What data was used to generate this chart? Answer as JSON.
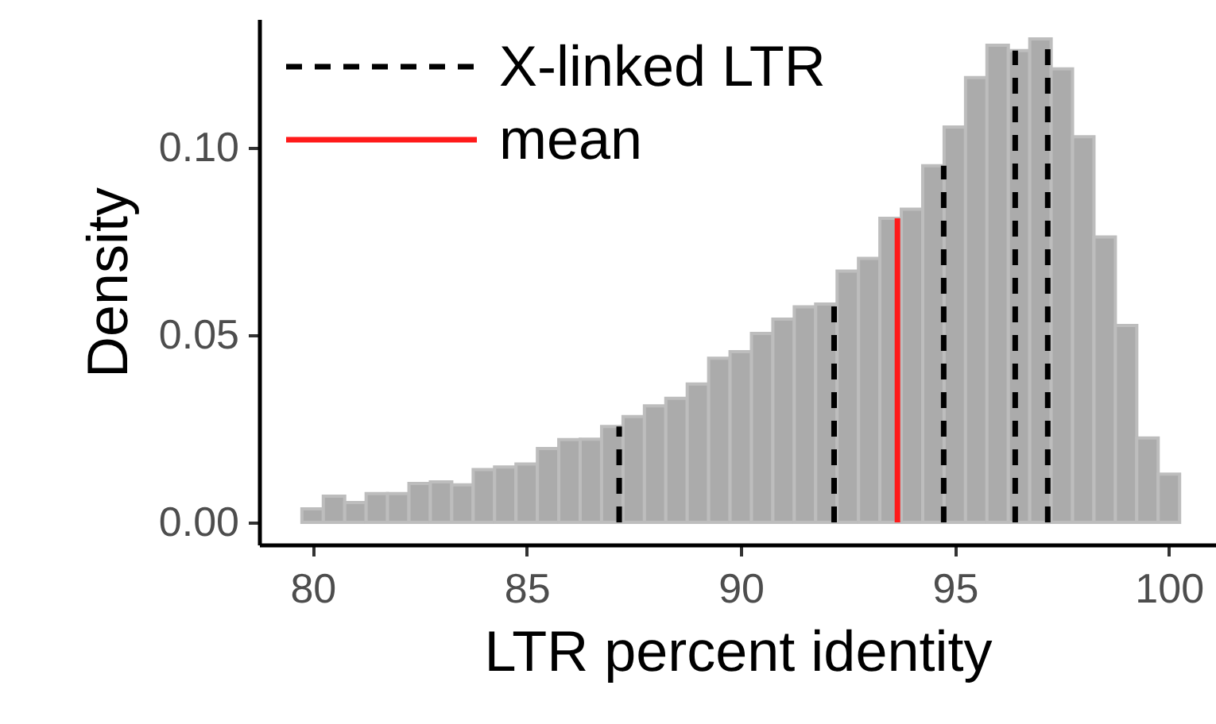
{
  "chart_data": {
    "type": "histogram",
    "xlabel": "LTR percent identity",
    "ylabel": "Density",
    "bins": [
      79.75,
      80.25,
      80.75,
      81.25,
      81.75,
      82.25,
      82.75,
      83.25,
      83.75,
      84.25,
      84.75,
      85.25,
      85.75,
      86.25,
      86.75,
      87.25,
      87.75,
      88.25,
      88.75,
      89.25,
      89.75,
      90.25,
      90.75,
      91.25,
      91.75,
      92.25,
      92.75,
      93.25,
      93.75,
      94.25,
      94.75,
      95.25,
      95.75,
      96.25,
      96.75,
      97.25,
      97.75,
      98.25,
      98.75,
      99.25,
      99.75,
      100.25
    ],
    "values": [
      0.0036,
      0.007,
      0.0053,
      0.0077,
      0.0077,
      0.0104,
      0.0108,
      0.01,
      0.0141,
      0.0148,
      0.0156,
      0.0197,
      0.0221,
      0.0222,
      0.0256,
      0.0282,
      0.0311,
      0.0331,
      0.0369,
      0.0438,
      0.0455,
      0.0504,
      0.0542,
      0.0575,
      0.0582,
      0.067,
      0.0704,
      0.0811,
      0.0835,
      0.0951,
      0.1054,
      0.1186,
      0.1272,
      0.1258,
      0.1289,
      0.1209,
      0.1028,
      0.0761,
      0.0525,
      0.0225,
      0.0129
    ],
    "color": "#ababab",
    "xlim": [
      78.75,
      101.1
    ],
    "ylim": [
      -0.0059,
      0.1342
    ],
    "xticks": [
      80,
      85,
      90,
      95,
      100
    ],
    "yticks": [
      {
        "value": 0,
        "label": "0.00"
      },
      {
        "value": 0.05,
        "label": "0.05"
      },
      {
        "value": 0.1,
        "label": "0.10"
      }
    ],
    "ref_lines": [
      {
        "axis": "x",
        "value": 87.16,
        "label": "X-linked LTR",
        "color": "#000000",
        "line_style": "dashed"
      },
      {
        "axis": "x",
        "value": 92.18,
        "color": "#000000",
        "line_style": "dashed"
      },
      {
        "axis": "x",
        "value": 93.66,
        "label": "mean",
        "color": "#ff1a1a",
        "line_style": "solid"
      },
      {
        "axis": "x",
        "value": 94.74,
        "color": "#000000",
        "line_style": "dashed"
      },
      {
        "axis": "x",
        "value": 96.41,
        "color": "#000000",
        "line_style": "dashed"
      },
      {
        "axis": "x",
        "value": 97.17,
        "color": "#000000",
        "line_style": "dashed"
      }
    ],
    "legend": "top left",
    "grid": false
  }
}
